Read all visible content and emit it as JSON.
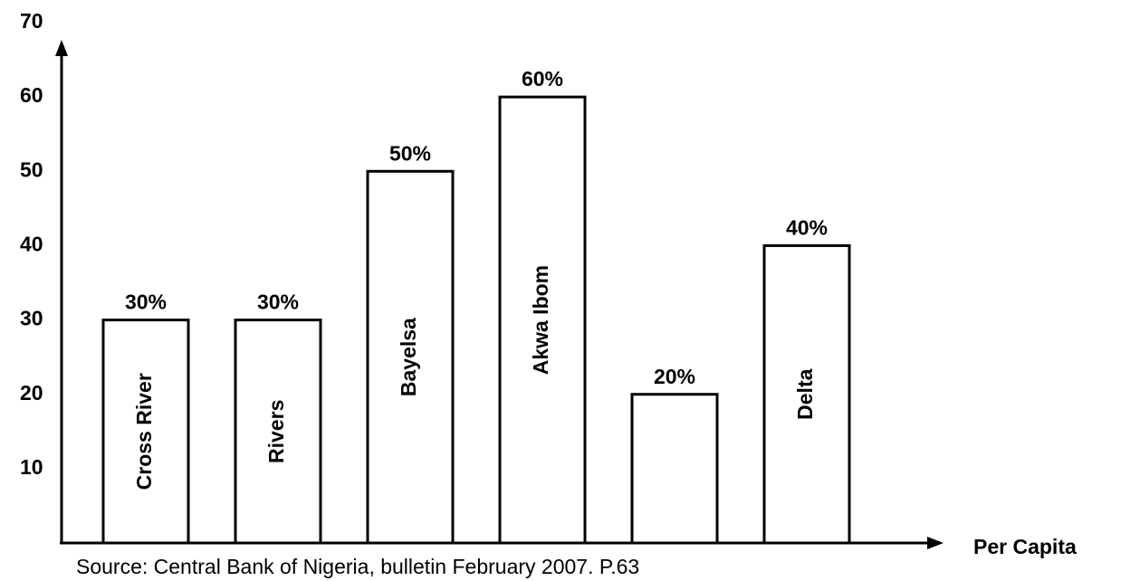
{
  "chart_data": {
    "type": "bar",
    "categories": [
      "Cross River",
      "Rivers",
      "Bayelsa",
      "Akwa Ibom",
      null,
      "Delta"
    ],
    "values": [
      30,
      30,
      50,
      60,
      20,
      40
    ],
    "value_labels": [
      "30%",
      "30%",
      "50%",
      "60%",
      "20%",
      "40%"
    ],
    "color": "#ffffff",
    "edgecolor": "#000000",
    "ylim": [
      0,
      70
    ],
    "yticks": [
      10,
      20,
      30,
      40,
      50,
      60,
      70
    ],
    "grid": false,
    "xlabel": "Per Capita",
    "source": "Source: Central Bank of Nigeria, bulletin February 2007. P.63"
  }
}
